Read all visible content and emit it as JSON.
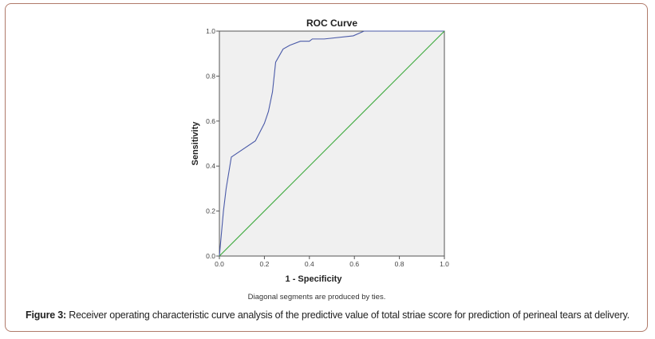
{
  "chart_data": {
    "type": "line",
    "title": "ROC Curve",
    "xlabel": "1 - Specificity",
    "ylabel": "Sensitivity",
    "xlim": [
      0,
      1
    ],
    "ylim": [
      0,
      1
    ],
    "xticks": [
      "0.0",
      "0.2",
      "0.4",
      "0.6",
      "0.8",
      "1.0"
    ],
    "yticks": [
      "0.0",
      "0.2",
      "0.4",
      "0.6",
      "0.8",
      "1.0"
    ],
    "grid": false,
    "footnote": "Diagonal segments are produced by ties.",
    "series": [
      {
        "color": "#4a5aa8",
        "x": [
          0,
          0.018,
          0.03,
          0.053,
          0.16,
          0.2,
          0.218,
          0.236,
          0.25,
          0.283,
          0.313,
          0.36,
          0.4,
          0.413,
          0.466,
          0.595,
          0.643,
          1.0
        ],
        "y": [
          0,
          0.2,
          0.3,
          0.44,
          0.512,
          0.59,
          0.643,
          0.73,
          0.862,
          0.92,
          0.937,
          0.955,
          0.955,
          0.965,
          0.965,
          0.979,
          1.0,
          1.0
        ]
      },
      {
        "color": "#3aa83a",
        "x": [
          0,
          1
        ],
        "y": [
          0,
          1
        ]
      }
    ],
    "background": "#f0f0f0"
  },
  "caption": {
    "label": "Figure 3:",
    "text": " Receiver operating characteristic curve analysis of the predictive value of total striae score for prediction of perineal tears at delivery."
  }
}
